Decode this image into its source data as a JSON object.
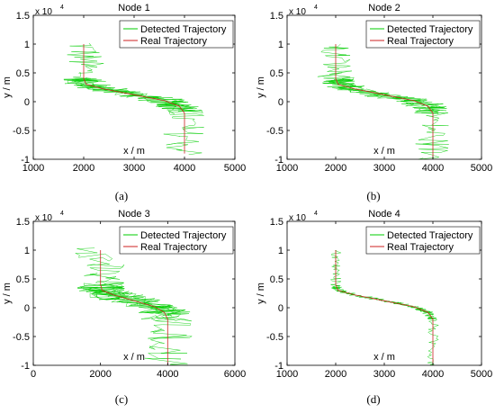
{
  "chart_data": [
    {
      "type": "line",
      "title": "Node 1",
      "xlabel": "x / m",
      "ylabel": "y / m",
      "y_multiplier_label": "x 10",
      "y_multiplier_exp": "4",
      "xlim": [
        1000,
        5000
      ],
      "ylim": [
        -1.0,
        1.5
      ],
      "xticks": [
        1000,
        2000,
        3000,
        4000,
        5000
      ],
      "xtick_labels": [
        "1000",
        "2000",
        "3000",
        "4000",
        "5000"
      ],
      "yticks": [
        -1.0,
        -0.5,
        0,
        0.5,
        1.0,
        1.5
      ],
      "ytick_labels": [
        "-1",
        "-0.5",
        "0",
        "0.5",
        "1",
        "1.5"
      ],
      "noise": {
        "x": 420,
        "y": 0.03
      },
      "series": [
        {
          "name": "Detected Trajectory",
          "color": "#00cc00"
        },
        {
          "name": "Real Trajectory",
          "color": "#cc2222",
          "x": [
            2000,
            2000,
            2050,
            2400,
            3000,
            3600,
            3900,
            4000,
            4000
          ],
          "y": [
            1.0,
            0.4,
            0.3,
            0.22,
            0.12,
            0.02,
            -0.08,
            -0.2,
            -0.9
          ]
        }
      ],
      "legend": "top-right",
      "caption": "(a)"
    },
    {
      "type": "line",
      "title": "Node 2",
      "xlabel": "x / m",
      "ylabel": "y / m",
      "y_multiplier_label": "x 10",
      "y_multiplier_exp": "4",
      "xlim": [
        1000,
        5000
      ],
      "ylim": [
        -1.0,
        1.5
      ],
      "xticks": [
        1000,
        2000,
        3000,
        4000,
        5000
      ],
      "xtick_labels": [
        "1000",
        "2000",
        "3000",
        "4000",
        "5000"
      ],
      "yticks": [
        -1.0,
        -0.5,
        0,
        0.5,
        1.0,
        1.5
      ],
      "ytick_labels": [
        "-1",
        "-0.5",
        "0",
        "0.5",
        "1",
        "1.5"
      ],
      "noise": {
        "x": 380,
        "y": 0.03
      },
      "series": [
        {
          "name": "Detected Trajectory",
          "color": "#00cc00"
        },
        {
          "name": "Real Trajectory",
          "color": "#cc2222",
          "x": [
            2000,
            2000,
            2050,
            2400,
            3000,
            3600,
            3900,
            4000,
            4000
          ],
          "y": [
            1.0,
            0.4,
            0.3,
            0.22,
            0.12,
            0.02,
            -0.08,
            -0.2,
            -1.0
          ]
        }
      ],
      "legend": "top-right",
      "caption": "(b)"
    },
    {
      "type": "line",
      "title": "Node 3",
      "xlabel": "x / m",
      "ylabel": "y / m",
      "y_multiplier_label": "x 10",
      "y_multiplier_exp": "4",
      "xlim": [
        0,
        6000
      ],
      "ylim": [
        -1.0,
        1.5
      ],
      "xticks": [
        0,
        2000,
        4000,
        6000
      ],
      "xtick_labels": [
        "0",
        "2000",
        "4000",
        "6000"
      ],
      "yticks": [
        -1.0,
        -0.5,
        0,
        0.5,
        1.0,
        1.5
      ],
      "ytick_labels": [
        "-1",
        "-0.5",
        "0",
        "0.5",
        "1",
        "1.5"
      ],
      "noise": {
        "x": 750,
        "y": 0.05
      },
      "series": [
        {
          "name": "Detected Trajectory",
          "color": "#00cc00"
        },
        {
          "name": "Real Trajectory",
          "color": "#cc2222",
          "x": [
            2000,
            2000,
            2050,
            2400,
            3000,
            3600,
            3900,
            4000,
            4000
          ],
          "y": [
            1.0,
            0.4,
            0.3,
            0.22,
            0.12,
            0.02,
            -0.08,
            -0.2,
            -1.0
          ]
        }
      ],
      "legend": "top-right",
      "caption": "(c)"
    },
    {
      "type": "line",
      "title": "Node 4",
      "xlabel": "x / m",
      "ylabel": "y / m",
      "y_multiplier_label": "x 10",
      "y_multiplier_exp": "4",
      "xlim": [
        1000,
        5000
      ],
      "ylim": [
        -1.0,
        1.5
      ],
      "xticks": [
        1000,
        2000,
        3000,
        4000,
        5000
      ],
      "xtick_labels": [
        "1000",
        "2000",
        "3000",
        "4000",
        "5000"
      ],
      "yticks": [
        -1.0,
        -0.5,
        0,
        0.5,
        1.0,
        1.5
      ],
      "ytick_labels": [
        "-1",
        "-0.5",
        "0",
        "0.5",
        "1",
        "1.5"
      ],
      "noise": {
        "x": 120,
        "y": 0.012
      },
      "series": [
        {
          "name": "Detected Trajectory",
          "color": "#00cc00"
        },
        {
          "name": "Real Trajectory",
          "color": "#cc2222",
          "x": [
            2000,
            2000,
            2050,
            2400,
            3000,
            3600,
            3900,
            4000,
            4000
          ],
          "y": [
            1.0,
            0.4,
            0.3,
            0.22,
            0.12,
            0.02,
            -0.08,
            -0.2,
            -1.0
          ]
        }
      ],
      "legend": "top-right",
      "caption": "(d)"
    }
  ]
}
